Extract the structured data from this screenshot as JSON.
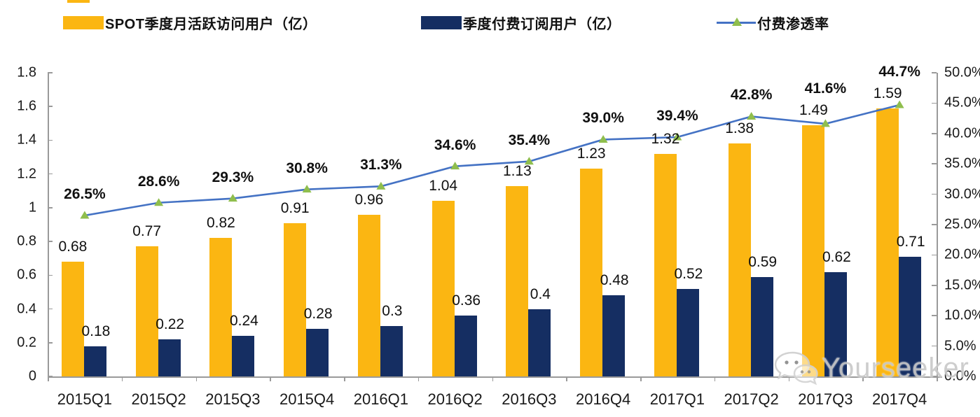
{
  "legend": {
    "items": [
      {
        "label": "SPOT季度月活跃访问用户（亿）",
        "swatch": "bar",
        "color": "#FBB612"
      },
      {
        "label": "季度付费订阅用户（亿）",
        "swatch": "bar",
        "color": "#152E62"
      },
      {
        "label": "付费渗透率",
        "swatch": "line",
        "color": "#4472C4",
        "marker_color": "#8FBE4D"
      }
    ]
  },
  "watermark": {
    "text": "Yourseeker",
    "icon": "wechat-icon"
  },
  "colors": {
    "bar_mau": "#FBB612",
    "bar_subs": "#152E62",
    "line": "#4472C4",
    "marker": "#8FBE4D",
    "axis": "#9a9a9a",
    "text": "#111111"
  },
  "chart_data": {
    "type": "bar",
    "subtype": "grouped-bars-with-line-overlay",
    "title": "",
    "categories": [
      "2015Q1",
      "2015Q2",
      "2015Q3",
      "2015Q4",
      "2016Q1",
      "2016Q2",
      "2016Q3",
      "2016Q4",
      "2017Q1",
      "2017Q2",
      "2017Q3",
      "2017Q4"
    ],
    "series": [
      {
        "name": "SPOT季度月活跃访问用户（亿）",
        "type": "bar",
        "axis": "left",
        "color": "#FBB612",
        "values": [
          0.68,
          0.77,
          0.82,
          0.91,
          0.96,
          1.04,
          1.13,
          1.23,
          1.32,
          1.38,
          1.49,
          1.59
        ],
        "labels": [
          "0.68",
          "0.77",
          "0.82",
          "0.91",
          "0.96",
          "1.04",
          "1.13",
          "1.23",
          "1.32",
          "1.38",
          "1.49",
          "1.59"
        ]
      },
      {
        "name": "季度付费订阅用户（亿）",
        "type": "bar",
        "axis": "left",
        "color": "#152E62",
        "values": [
          0.18,
          0.22,
          0.24,
          0.28,
          0.3,
          0.36,
          0.4,
          0.48,
          0.52,
          0.59,
          0.62,
          0.71
        ],
        "labels": [
          "0.18",
          "0.22",
          "0.24",
          "0.28",
          "0.3",
          "0.36",
          "0.4",
          "0.48",
          "0.52",
          "0.59",
          "0.62",
          "0.71"
        ]
      },
      {
        "name": "付费渗透率",
        "type": "line",
        "axis": "right",
        "color": "#4472C4",
        "marker": "triangle",
        "marker_color": "#8FBE4D",
        "values": [
          26.5,
          28.6,
          29.3,
          30.8,
          31.3,
          34.6,
          35.4,
          39.0,
          39.4,
          42.8,
          41.6,
          44.7
        ],
        "labels": [
          "26.5%",
          "28.6%",
          "29.3%",
          "30.8%",
          "31.3%",
          "34.6%",
          "35.4%",
          "39.0%",
          "39.4%",
          "42.8%",
          "41.6%",
          "44.7%"
        ]
      }
    ],
    "left_axis": {
      "min": 0,
      "max": 1.8,
      "tick_labels_top_to_bottom": [
        "1.8",
        "1.6",
        "1.4",
        "1.2",
        "1",
        "0.8",
        "0.6",
        "0.4",
        "0.2",
        "0"
      ]
    },
    "right_axis": {
      "min": 0,
      "max": 50,
      "tick_labels_top_to_bottom": [
        "50.0%",
        "45.0%",
        "40.0%",
        "35.0%",
        "30.0%",
        "25.0%",
        "20.0%",
        "15.0%",
        "10.0%",
        "5.0%",
        "0.0%"
      ]
    },
    "grid": false,
    "legend_position": "top"
  }
}
